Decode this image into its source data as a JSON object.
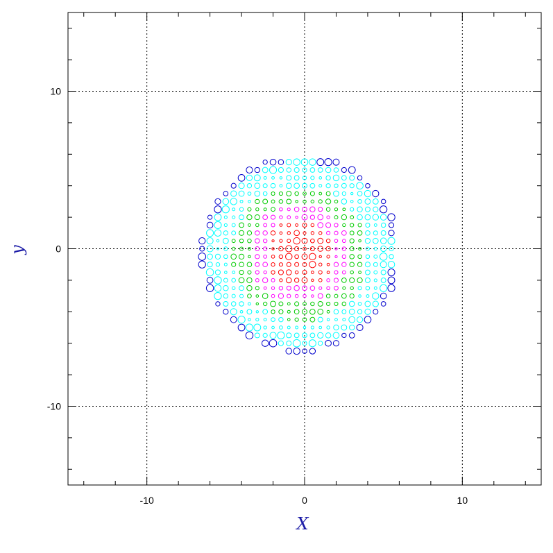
{
  "chart_data": {
    "type": "scatter",
    "title": "",
    "xlabel": "X",
    "ylabel": "y",
    "xlim": [
      -15,
      15
    ],
    "ylim": [
      -15,
      15
    ],
    "grid": true,
    "x_ticks": [
      -10,
      0,
      10
    ],
    "y_ticks": [
      -10,
      0,
      10
    ],
    "x_tick_labels": [
      "-10",
      "0",
      "10"
    ],
    "y_tick_labels": [
      "-10",
      "0",
      "10"
    ],
    "marker": "open-circle",
    "point_spacing": 0.5,
    "disc_center": [
      -0.3,
      -0.3
    ],
    "disc_radius": 6.3,
    "color_bands": [
      {
        "color": "#ff0000",
        "max_radius": 2.2
      },
      {
        "color": "#ff00ff",
        "max_radius": 3.2
      },
      {
        "color": "#00cc00",
        "max_radius": 4.3
      },
      {
        "color": "#00ffff",
        "max_radius": 5.9
      },
      {
        "color": "#0000cc",
        "max_radius": 6.6
      }
    ]
  },
  "colors": {
    "axis_title": "#1a1aa6",
    "frame": "#000000",
    "grid": "#000000"
  }
}
